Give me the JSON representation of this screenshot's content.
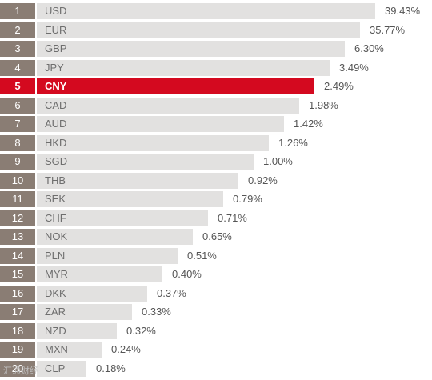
{
  "chart_data": {
    "type": "bar",
    "orientation": "horizontal",
    "ranks": [
      "1",
      "2",
      "3",
      "4",
      "5",
      "6",
      "7",
      "8",
      "9",
      "10",
      "11",
      "12",
      "13",
      "14",
      "15",
      "16",
      "17",
      "18",
      "19",
      "20"
    ],
    "categories": [
      "USD",
      "EUR",
      "GBP",
      "JPY",
      "CNY",
      "CAD",
      "AUD",
      "HKD",
      "SGD",
      "THB",
      "SEK",
      "CHF",
      "NOK",
      "PLN",
      "MYR",
      "DKK",
      "ZAR",
      "NZD",
      "MXN",
      "CLP"
    ],
    "values": [
      39.43,
      35.77,
      6.3,
      3.49,
      2.49,
      1.98,
      1.42,
      1.26,
      1.0,
      0.92,
      0.79,
      0.71,
      0.65,
      0.51,
      0.4,
      0.37,
      0.33,
      0.32,
      0.24,
      0.18
    ],
    "value_labels": [
      "39.43%",
      "35.77%",
      "6.30%",
      "3.49%",
      "2.49%",
      "1.98%",
      "1.42%",
      "1.26%",
      "1.00%",
      "0.92%",
      "0.79%",
      "0.71%",
      "0.65%",
      "0.51%",
      "0.40%",
      "0.37%",
      "0.33%",
      "0.32%",
      "0.24%",
      "0.18%"
    ],
    "highlight_index": 4,
    "grid": false,
    "legend": "none"
  },
  "colors": {
    "bar": "#e2e1e0",
    "rank": "#8a7d74",
    "highlight": "#d4091f"
  },
  "watermark": "汇通财经"
}
